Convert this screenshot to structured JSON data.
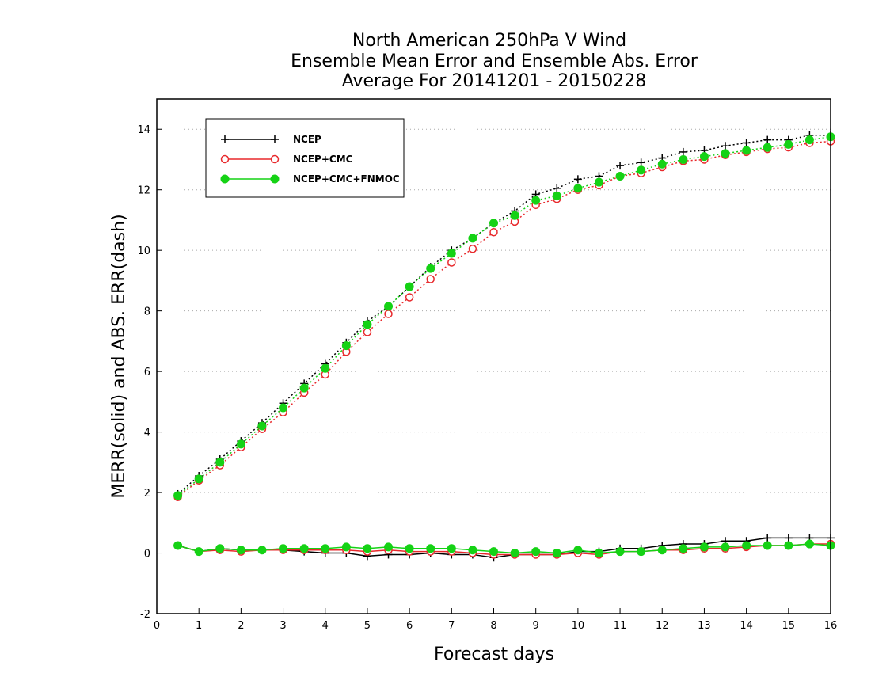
{
  "chart_data": {
    "type": "line",
    "title": [
      "North American 250hPa V Wind",
      "Ensemble Mean Error and Ensemble Abs. Error",
      "Average For 20141201 - 20150228"
    ],
    "xlabel": "Forecast days",
    "ylabel": "MERR(solid) and ABS. ERR(dash)",
    "xlim": [
      0,
      16
    ],
    "ylim": [
      -2,
      15
    ],
    "xticks": [
      0,
      1,
      2,
      3,
      4,
      5,
      6,
      7,
      8,
      9,
      10,
      11,
      12,
      13,
      14,
      15,
      16
    ],
    "yticks": [
      -2,
      0,
      2,
      4,
      6,
      8,
      10,
      12,
      14
    ],
    "grid": "horizontal dotted",
    "legend_position": "top-left",
    "x": [
      0.5,
      1,
      1.5,
      2,
      2.5,
      3,
      3.5,
      4,
      4.5,
      5,
      5.5,
      6,
      6.5,
      7,
      7.5,
      8,
      8.5,
      9,
      9.5,
      10,
      10.5,
      11,
      11.5,
      12,
      12.5,
      13,
      13.5,
      14,
      14.5,
      15,
      15.5,
      16
    ],
    "series": [
      {
        "name": "NCEP",
        "color": "#000000",
        "marker": "plus",
        "abs_err": [
          1.95,
          2.55,
          3.1,
          3.7,
          4.3,
          4.95,
          5.6,
          6.25,
          6.95,
          7.65,
          8.15,
          8.8,
          9.45,
          10.0,
          10.4,
          10.9,
          11.3,
          11.85,
          12.05,
          12.35,
          12.45,
          12.8,
          12.9,
          13.05,
          13.25,
          13.3,
          13.45,
          13.55,
          13.65,
          13.65,
          13.8,
          13.8
        ],
        "mean_err": [
          0.25,
          0.05,
          0.15,
          0.1,
          0.1,
          0.1,
          0.05,
          0.0,
          0.0,
          -0.1,
          -0.05,
          -0.05,
          0.0,
          -0.05,
          -0.05,
          -0.15,
          -0.05,
          -0.05,
          -0.05,
          0.05,
          0.05,
          0.15,
          0.15,
          0.25,
          0.3,
          0.3,
          0.4,
          0.4,
          0.5,
          0.5,
          0.5,
          0.5
        ]
      },
      {
        "name": "NCEP+CMC",
        "color": "#e8292c",
        "marker": "open-circle",
        "abs_err": [
          1.85,
          2.4,
          2.9,
          3.5,
          4.1,
          4.65,
          5.3,
          5.9,
          6.65,
          7.3,
          7.9,
          8.45,
          9.05,
          9.6,
          10.05,
          10.6,
          10.95,
          11.5,
          11.7,
          12.0,
          12.15,
          12.45,
          12.55,
          12.75,
          12.95,
          13.0,
          13.15,
          13.25,
          13.35,
          13.4,
          13.55,
          13.6
        ],
        "mean_err": [
          0.25,
          0.05,
          0.1,
          0.05,
          0.1,
          0.1,
          0.1,
          0.1,
          0.1,
          0.05,
          0.1,
          0.05,
          0.05,
          0.05,
          0.0,
          -0.05,
          -0.05,
          -0.05,
          -0.05,
          0.0,
          -0.05,
          0.05,
          0.05,
          0.1,
          0.1,
          0.15,
          0.15,
          0.2,
          0.25,
          0.25,
          0.3,
          0.3
        ]
      },
      {
        "name": "NCEP+CMC+FNMOC",
        "color": "#15d215",
        "marker": "filled-circle",
        "abs_err": [
          1.9,
          2.45,
          3.0,
          3.6,
          4.2,
          4.8,
          5.45,
          6.1,
          6.85,
          7.55,
          8.15,
          8.8,
          9.4,
          9.9,
          10.4,
          10.9,
          11.15,
          11.65,
          11.8,
          12.05,
          12.25,
          12.45,
          12.65,
          12.85,
          13.0,
          13.1,
          13.2,
          13.3,
          13.4,
          13.5,
          13.65,
          13.75
        ],
        "mean_err": [
          0.25,
          0.05,
          0.15,
          0.1,
          0.1,
          0.15,
          0.15,
          0.15,
          0.2,
          0.15,
          0.2,
          0.15,
          0.15,
          0.15,
          0.1,
          0.05,
          0.0,
          0.05,
          0.0,
          0.1,
          0.0,
          0.05,
          0.05,
          0.1,
          0.15,
          0.2,
          0.2,
          0.25,
          0.25,
          0.25,
          0.3,
          0.25
        ]
      }
    ]
  }
}
